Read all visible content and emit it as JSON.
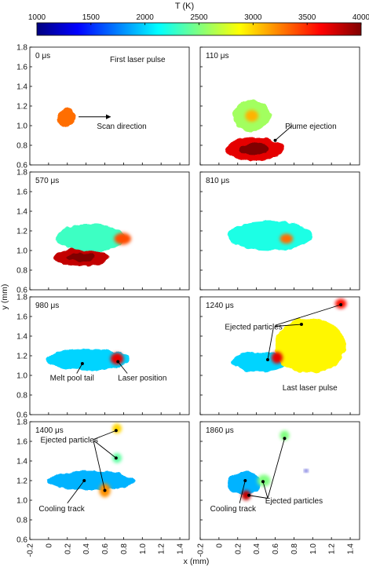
{
  "colorbar": {
    "label": "T (K)",
    "min": 1000,
    "max": 4000,
    "ticks": [
      "1000",
      "1500",
      "2000",
      "2500",
      "3000",
      "3500",
      "4000"
    ],
    "stops": [
      "#00007f",
      "#0000ff",
      "#007fff",
      "#00ffff",
      "#7fff7f",
      "#ffff00",
      "#ff7f00",
      "#ff0000",
      "#7f0000"
    ]
  },
  "axes": {
    "xlabel": "x (mm)",
    "ylabel": "y (mm)",
    "xlim": [
      -0.2,
      1.5
    ],
    "ylim": [
      0.6,
      1.8
    ],
    "xticks": [
      "-0.2",
      "0",
      "0.2",
      "0.4",
      "0.6",
      "0.8",
      "1.0",
      "1.2",
      "1.4"
    ],
    "yticks": [
      "0.6",
      "0.8",
      "1.0",
      "1.2",
      "1.4",
      "1.6",
      "1.8"
    ]
  },
  "chart_data": [
    {
      "type": "heatmap",
      "time": "0 μs",
      "blobs": [
        {
          "x": 0.19,
          "y": 1.08,
          "rx": 0.09,
          "ry": 0.1,
          "t": 3300
        }
      ],
      "annotations": [
        {
          "text": "First laser pulse",
          "x": 0.95,
          "y": 1.68
        },
        {
          "text": "Scan direction",
          "x": 0.78,
          "y": 1.0
        }
      ],
      "arrows": [
        {
          "from": [
            0.32,
            1.09
          ],
          "to": [
            0.66,
            1.09
          ]
        }
      ]
    },
    {
      "type": "heatmap",
      "time": "110 μs",
      "blobs": [
        {
          "x": 0.35,
          "y": 1.1,
          "rx": 0.2,
          "ry": 0.16,
          "t": 2600
        },
        {
          "x": 0.35,
          "y": 1.1,
          "rx": 0.07,
          "ry": 0.06,
          "t": 3100
        }
      ],
      "spatter": {
        "x": 0.38,
        "y": 0.76,
        "w": 0.62,
        "h": 0.24,
        "t": 3700
      },
      "annotations": [
        {
          "text": "Plume ejection",
          "x": 0.98,
          "y": 1.0
        }
      ],
      "arrows": [
        {
          "from": [
            0.78,
            1.0
          ],
          "to": [
            0.6,
            0.85
          ]
        }
      ]
    },
    {
      "type": "heatmap",
      "time": "570 μs",
      "blobs": [
        {
          "x": 0.45,
          "y": 1.13,
          "rx": 0.37,
          "ry": 0.14,
          "t": 2300
        },
        {
          "x": 0.79,
          "y": 1.12,
          "rx": 0.09,
          "ry": 0.06,
          "t": 3400
        }
      ],
      "spatter": {
        "x": 0.35,
        "y": 0.93,
        "w": 0.58,
        "h": 0.18,
        "t": 3800
      },
      "annotations": [],
      "arrows": []
    },
    {
      "type": "heatmap",
      "time": "810 μs",
      "blobs": [
        {
          "x": 0.54,
          "y": 1.15,
          "rx": 0.45,
          "ry": 0.15,
          "t": 2200
        },
        {
          "x": 0.72,
          "y": 1.12,
          "rx": 0.07,
          "ry": 0.05,
          "t": 3300
        }
      ],
      "annotations": [],
      "arrows": []
    },
    {
      "type": "heatmap",
      "time": "980 μs",
      "blobs": [
        {
          "x": 0.42,
          "y": 1.16,
          "rx": 0.44,
          "ry": 0.11,
          "t": 2000
        },
        {
          "x": 0.73,
          "y": 1.17,
          "rx": 0.07,
          "ry": 0.06,
          "t": 3700
        }
      ],
      "annotations": [
        {
          "text": "Melt pool tail",
          "x": 0.25,
          "y": 0.98
        },
        {
          "text": "Laser position",
          "x": 1.0,
          "y": 0.98
        }
      ],
      "arrows": [
        {
          "from": [
            0.3,
            1.02
          ],
          "to": [
            0.36,
            1.12
          ]
        },
        {
          "from": [
            0.84,
            1.02
          ],
          "to": [
            0.74,
            1.14
          ]
        }
      ]
    },
    {
      "type": "heatmap",
      "time": "1240 μs",
      "blobs": [
        {
          "x": 0.44,
          "y": 1.14,
          "rx": 0.3,
          "ry": 0.1,
          "t": 2000
        },
        {
          "x": 0.97,
          "y": 1.3,
          "rx": 0.38,
          "ry": 0.28,
          "t": 2900
        },
        {
          "x": 1.3,
          "y": 1.73,
          "rx": 0.06,
          "ry": 0.05,
          "t": 3600
        },
        {
          "x": 0.62,
          "y": 1.18,
          "rx": 0.06,
          "ry": 0.06,
          "t": 3700
        }
      ],
      "annotations": [
        {
          "text": "Ejected particles",
          "x": 0.37,
          "y": 1.5
        },
        {
          "text": "Last laser pulse",
          "x": 0.97,
          "y": 0.88
        }
      ],
      "arrows": [
        {
          "from": [
            0.58,
            1.48
          ],
          "to": [
            0.52,
            1.16
          ]
        },
        {
          "from": [
            0.6,
            1.5
          ],
          "to": [
            0.88,
            1.52
          ]
        },
        {
          "from": [
            0.6,
            1.51
          ],
          "to": [
            1.3,
            1.72
          ]
        }
      ]
    },
    {
      "type": "heatmap",
      "time": "1400 μs",
      "blobs": [
        {
          "x": 0.45,
          "y": 1.2,
          "rx": 0.46,
          "ry": 0.1,
          "t": 1900
        },
        {
          "x": 0.6,
          "y": 1.1,
          "rx": 0.06,
          "ry": 0.07,
          "t": 3200
        },
        {
          "x": 0.73,
          "y": 1.73,
          "rx": 0.05,
          "ry": 0.05,
          "t": 3000
        },
        {
          "x": 0.73,
          "y": 1.43,
          "rx": 0.05,
          "ry": 0.05,
          "t": 2400
        }
      ],
      "annotations": [
        {
          "text": "Ejected particles",
          "x": 0.22,
          "y": 1.62
        },
        {
          "text": "Cooling track",
          "x": 0.14,
          "y": 0.92
        }
      ],
      "arrows": [
        {
          "from": [
            0.48,
            1.62
          ],
          "to": [
            0.72,
            1.71
          ]
        },
        {
          "from": [
            0.48,
            1.61
          ],
          "to": [
            0.72,
            1.43
          ]
        },
        {
          "from": [
            0.48,
            1.6
          ],
          "to": [
            0.6,
            1.1
          ]
        },
        {
          "from": [
            0.2,
            0.97
          ],
          "to": [
            0.38,
            1.2
          ]
        }
      ]
    },
    {
      "type": "heatmap",
      "time": "1860 μs",
      "blobs": [
        {
          "x": 0.27,
          "y": 1.17,
          "rx": 0.18,
          "ry": 0.12,
          "t": 1900
        },
        {
          "x": 0.29,
          "y": 1.05,
          "rx": 0.05,
          "ry": 0.05,
          "t": 3800
        },
        {
          "x": 0.48,
          "y": 1.2,
          "rx": 0.07,
          "ry": 0.06,
          "t": 2500
        },
        {
          "x": 0.7,
          "y": 1.66,
          "rx": 0.05,
          "ry": 0.05,
          "t": 2500
        },
        {
          "x": 0.93,
          "y": 1.3,
          "rx": 0.02,
          "ry": 0.015,
          "t": 1200
        }
      ],
      "annotations": [
        {
          "text": "Ejected particles",
          "x": 0.8,
          "y": 1.0
        },
        {
          "text": "Cooling track",
          "x": 0.15,
          "y": 0.92
        }
      ],
      "arrows": [
        {
          "from": [
            0.52,
            1.02
          ],
          "to": [
            0.7,
            1.63
          ]
        },
        {
          "from": [
            0.52,
            1.02
          ],
          "to": [
            0.47,
            1.19
          ]
        },
        {
          "from": [
            0.52,
            1.02
          ],
          "to": [
            0.32,
            1.05
          ]
        },
        {
          "from": [
            0.22,
            0.97
          ],
          "to": [
            0.28,
            1.2
          ]
        }
      ]
    }
  ]
}
